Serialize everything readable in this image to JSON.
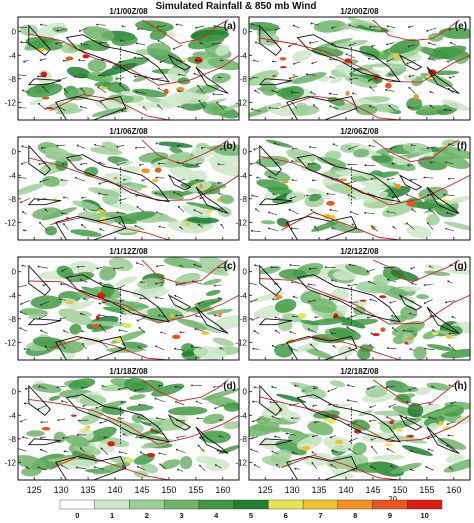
{
  "figure": {
    "title": "Simulated Rainfall & 850 mb Wind"
  },
  "chart_data": {
    "type": "heatmap",
    "x_ticks": [
      125,
      130,
      135,
      140,
      145,
      150,
      155,
      160
    ],
    "y_ticks": [
      0,
      -4,
      -8,
      -12
    ],
    "xlim": [
      122,
      163
    ],
    "ylim": [
      -15,
      2.5
    ],
    "wind_reference_vector": "20",
    "colorbar": {
      "levels": [
        "0",
        "1",
        "2",
        "3",
        "4",
        "5",
        "6",
        "7",
        "8",
        "9",
        "10"
      ],
      "colors": [
        "#ffffff",
        "#cde8c8",
        "#9ccf96",
        "#6db56a",
        "#3f9a43",
        "#1f7f2f",
        "#e6e655",
        "#f2c22a",
        "#f09226",
        "#e8551d",
        "#e01b0e"
      ]
    },
    "panels": [
      {
        "time": "1/1/00Z/08",
        "letter": "(a)"
      },
      {
        "time": "1/2/00Z/08",
        "letter": "(e)"
      },
      {
        "time": "1/1/06Z/08",
        "letter": "(b)"
      },
      {
        "time": "1/2/06Z/08",
        "letter": "(f)"
      },
      {
        "time": "1/1/12Z/08",
        "letter": "(c)"
      },
      {
        "time": "1/2/12Z/08",
        "letter": "(g)"
      },
      {
        "time": "1/1/18Z/08",
        "letter": "(d)"
      },
      {
        "time": "1/2/18Z/08",
        "letter": "(h)"
      }
    ]
  }
}
